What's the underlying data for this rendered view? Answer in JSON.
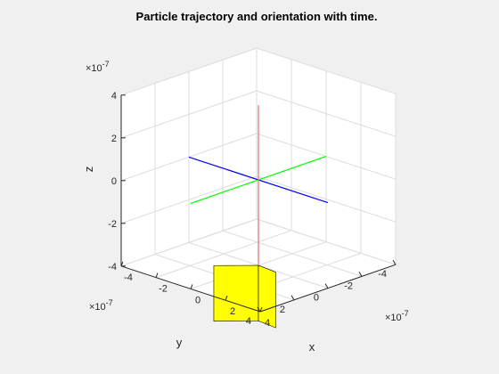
{
  "chart_data": {
    "type": "3d-line",
    "title": "Particle trajectory and orientation with time.",
    "xlabel": "x",
    "ylabel": "y",
    "zlabel": "z",
    "xlim": [
      -4,
      4
    ],
    "ylim": [
      -4,
      4
    ],
    "zlim": [
      -4,
      4
    ],
    "xticks": [
      "-4",
      "-2",
      "0",
      "2",
      "4"
    ],
    "yticks": [
      "-4",
      "-2",
      "0",
      "2",
      "4"
    ],
    "zticks": [
      "-4",
      "-2",
      "0",
      "2",
      "4"
    ],
    "axis_multiplier": "×10",
    "axis_exponent": "-7",
    "grid": true,
    "series": [
      {
        "segment": [
          [
            -4,
            0,
            0
          ],
          [
            4,
            0,
            0
          ]
        ],
        "color": "#0000ff"
      },
      {
        "segment": [
          [
            0,
            4,
            0
          ],
          [
            0,
            -4,
            0
          ]
        ],
        "color": "#00ff00"
      },
      {
        "segment": [
          [
            0,
            0,
            3.5
          ],
          [
            0,
            0,
            -4
          ]
        ],
        "color": "#e07070"
      }
    ],
    "patch": {
      "color": "#ffff00",
      "faces": [
        [
          [
            -1.3,
            1.3,
            -6.6
          ],
          [
            0,
            0,
            -6.6
          ],
          [
            0,
            0,
            -4
          ],
          [
            -1.3,
            1.3,
            -4
          ]
        ],
        [
          [
            0,
            0,
            -6.6
          ],
          [
            1.1,
            0.1,
            -6.6
          ],
          [
            1.1,
            0.1,
            -4
          ],
          [
            0,
            0,
            -4
          ]
        ]
      ]
    }
  }
}
